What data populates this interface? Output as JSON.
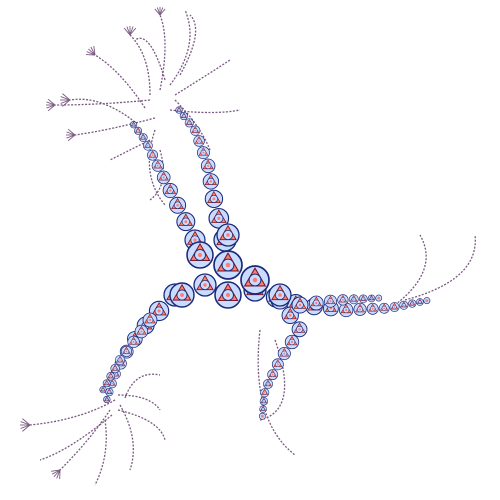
{
  "image": {
    "subject": "fractal-chain-figure",
    "description_visible_text": ""
  },
  "palette": {
    "background": "#ffffff",
    "circle_fill": "#c9dbff",
    "circle_stroke": "#1a2a7a",
    "triangle_fill": "#ff7c6e",
    "triangle_stroke": "#7a1a25",
    "curl_stroke": "#7a5a80",
    "curl_dot": "#b06a78"
  },
  "elements": {
    "branch_count": 3,
    "branch_names": [
      "upper-left",
      "lower-left",
      "right"
    ]
  }
}
